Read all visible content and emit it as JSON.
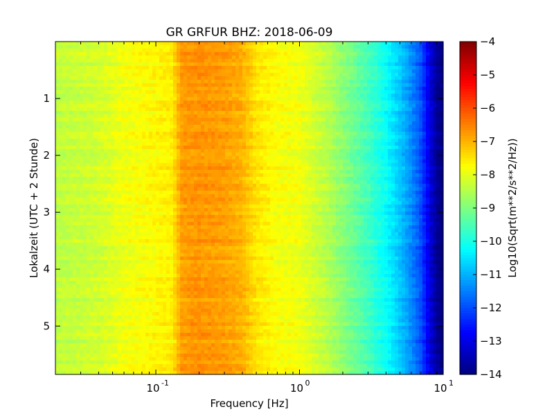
{
  "chart_data": {
    "type": "heatmap",
    "title": "GR GRFUR BHZ: 2018-06-09",
    "xlabel": "Frequency [Hz]",
    "ylabel": "Lokalzeit (UTC + 2 Stunde)",
    "xscale": "log",
    "xlim": [
      0.02,
      10
    ],
    "ylim": [
      5.85,
      0
    ],
    "y_inverted": true,
    "x_ticks": [
      {
        "value": 0.1,
        "base": "10",
        "exp": "-1"
      },
      {
        "value": 1,
        "base": "10",
        "exp": "0"
      },
      {
        "value": 10,
        "base": "10",
        "exp": "1"
      }
    ],
    "y_ticks": [
      {
        "value": 1,
        "label": "1"
      },
      {
        "value": 2,
        "label": "2"
      },
      {
        "value": 3,
        "label": "3"
      },
      {
        "value": 4,
        "label": "4"
      },
      {
        "value": 5,
        "label": "5"
      }
    ],
    "colorbar": {
      "label": "Log10(Sqrt(m**2/s**2/Hz))",
      "colormap": "jet",
      "range": [
        -14,
        -4
      ],
      "ticks": [
        {
          "value": -4,
          "label": "−4"
        },
        {
          "value": -5,
          "label": "−5"
        },
        {
          "value": -6,
          "label": "−6"
        },
        {
          "value": -7,
          "label": "−7"
        },
        {
          "value": -8,
          "label": "−8"
        },
        {
          "value": -9,
          "label": "−9"
        },
        {
          "value": -10,
          "label": "−10"
        },
        {
          "value": -11,
          "label": "−11"
        },
        {
          "value": -12,
          "label": "−12"
        },
        {
          "value": -13,
          "label": "−13"
        },
        {
          "value": -14,
          "label": "−14"
        }
      ]
    },
    "spectrum_profile": {
      "frequency_hz": [
        0.02,
        0.04,
        0.06,
        0.08,
        0.1,
        0.13,
        0.15,
        0.2,
        0.3,
        0.4,
        0.5,
        0.7,
        1.0,
        1.5,
        2.0,
        3.0,
        4.0,
        5.0,
        6.0,
        7.0,
        8.0,
        9.0,
        10.0
      ],
      "value": [
        -8.4,
        -8.2,
        -7.9,
        -7.8,
        -7.7,
        -7.6,
        -6.8,
        -6.7,
        -6.8,
        -7.0,
        -7.5,
        -7.8,
        -7.9,
        -8.4,
        -8.9,
        -9.6,
        -10.2,
        -10.8,
        -11.4,
        -12.0,
        -13.0,
        -13.8,
        -14.0
      ]
    }
  }
}
